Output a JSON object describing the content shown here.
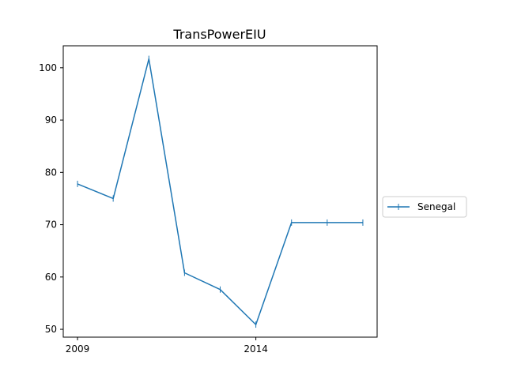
{
  "chart_data": {
    "type": "line",
    "title": "TransPowerEIU",
    "xlabel": "",
    "ylabel": "",
    "x": [
      2009,
      2010,
      2011,
      2012,
      2013,
      2014,
      2015,
      2016,
      2017
    ],
    "xticks": [
      2009,
      2014
    ],
    "yticks": [
      50,
      60,
      70,
      80,
      90,
      100
    ],
    "xlim": [
      2008.6,
      2017.4
    ],
    "ylim": [
      48.5,
      104.2
    ],
    "grid": false,
    "legend_position": "outside-right",
    "series": [
      {
        "name": "Senegal",
        "color": "#1f77b4",
        "marker": "vertical-line",
        "values": [
          77.8,
          75.0,
          101.7,
          60.8,
          57.6,
          50.9,
          70.4,
          70.4,
          70.4
        ]
      }
    ]
  }
}
